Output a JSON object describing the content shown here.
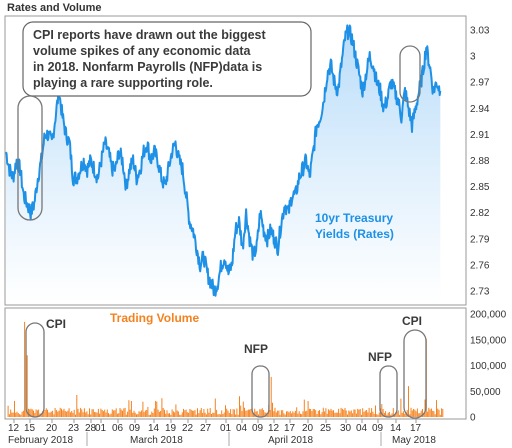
{
  "chart_data": [
    {
      "type": "area",
      "title": "Rates and Volume",
      "callout": [
        "CPI reports have drawn out the biggest",
        "volume spikes of any economic data",
        "in 2018.  Nonfarm Payrolls (NFP)data is",
        "playing a rare supporting role."
      ],
      "series_label": [
        "10yr Treasury",
        "Yields (Rates)"
      ],
      "yticks": [
        "3.03",
        "3",
        "2.97",
        "2.94",
        "2.91",
        "2.88",
        "2.85",
        "2.82",
        "2.79",
        "2.76",
        "2.73"
      ],
      "ylim": [
        2.715,
        3.045
      ],
      "xlim": [
        0,
        65
      ],
      "series": [
        {
          "name": "10yr Treasury Yields (Rates)",
          "color": "#1e90e6",
          "points": [
            [
              0,
              2.89
            ],
            [
              0.5,
              2.87
            ],
            [
              1,
              2.86
            ],
            [
              1.5,
              2.88
            ],
            [
              2,
              2.87
            ],
            [
              2.5,
              2.84
            ],
            [
              3,
              2.83
            ],
            [
              3.5,
              2.82
            ],
            [
              4,
              2.83
            ],
            [
              4.5,
              2.86
            ],
            [
              5,
              2.88
            ],
            [
              5.5,
              2.91
            ],
            [
              6,
              2.91
            ],
            [
              6.5,
              2.9
            ],
            [
              7,
              2.93
            ],
            [
              7.5,
              2.96
            ],
            [
              8,
              2.93
            ],
            [
              8.5,
              2.91
            ],
            [
              9,
              2.9
            ],
            [
              9.5,
              2.86
            ],
            [
              10,
              2.86
            ],
            [
              10.5,
              2.87
            ],
            [
              11,
              2.88
            ],
            [
              11.5,
              2.87
            ],
            [
              12,
              2.88
            ],
            [
              12.5,
              2.87
            ],
            [
              13,
              2.86
            ],
            [
              13.5,
              2.88
            ],
            [
              14,
              2.9
            ],
            [
              14.5,
              2.89
            ],
            [
              15,
              2.87
            ],
            [
              15.5,
              2.87
            ],
            [
              16,
              2.89
            ],
            [
              16.5,
              2.88
            ],
            [
              17,
              2.85
            ],
            [
              17.5,
              2.87
            ],
            [
              18,
              2.88
            ],
            [
              18.5,
              2.86
            ],
            [
              19,
              2.87
            ],
            [
              19.5,
              2.89
            ],
            [
              20,
              2.9
            ],
            [
              20.5,
              2.88
            ],
            [
              21,
              2.89
            ],
            [
              21.5,
              2.88
            ],
            [
              22,
              2.86
            ],
            [
              22.5,
              2.85
            ],
            [
              23,
              2.87
            ],
            [
              23.5,
              2.89
            ],
            [
              24,
              2.9
            ],
            [
              24.5,
              2.88
            ],
            [
              25,
              2.87
            ],
            [
              25.5,
              2.84
            ],
            [
              26,
              2.81
            ],
            [
              26.5,
              2.8
            ],
            [
              27,
              2.78
            ],
            [
              27.5,
              2.76
            ],
            [
              28,
              2.77
            ],
            [
              28.5,
              2.75
            ],
            [
              29,
              2.74
            ],
            [
              29.5,
              2.73
            ],
            [
              30,
              2.74
            ],
            [
              30.5,
              2.76
            ],
            [
              31,
              2.77
            ],
            [
              31.5,
              2.75
            ],
            [
              32,
              2.76
            ],
            [
              32.5,
              2.8
            ],
            [
              33,
              2.81
            ],
            [
              33.5,
              2.78
            ],
            [
              34,
              2.82
            ],
            [
              34.5,
              2.79
            ],
            [
              35,
              2.77
            ],
            [
              35.5,
              2.78
            ],
            [
              36,
              2.82
            ],
            [
              36.5,
              2.8
            ],
            [
              37,
              2.79
            ],
            [
              37.5,
              2.8
            ],
            [
              38,
              2.79
            ],
            [
              38.5,
              2.78
            ],
            [
              39,
              2.81
            ],
            [
              39.5,
              2.83
            ],
            [
              40,
              2.82
            ],
            [
              40.5,
              2.84
            ],
            [
              41,
              2.84
            ],
            [
              41.5,
              2.86
            ],
            [
              42,
              2.87
            ],
            [
              42.5,
              2.88
            ],
            [
              43,
              2.86
            ],
            [
              43.5,
              2.89
            ],
            [
              44,
              2.92
            ],
            [
              44.5,
              2.93
            ],
            [
              45,
              2.95
            ],
            [
              45.5,
              2.98
            ],
            [
              46,
              2.99
            ],
            [
              46.5,
              2.97
            ],
            [
              47,
              2.96
            ],
            [
              47.5,
              2.99
            ],
            [
              48,
              3.02
            ],
            [
              48.5,
              3.03
            ],
            [
              49,
              3.02
            ],
            [
              49.5,
              3
            ],
            [
              50,
              2.98
            ],
            [
              50.5,
              2.96
            ],
            [
              51,
              2.98
            ],
            [
              51.5,
              3
            ],
            [
              52,
              2.99
            ],
            [
              52.5,
              2.97
            ],
            [
              53,
              2.96
            ],
            [
              53.5,
              2.94
            ],
            [
              54,
              2.95
            ],
            [
              54.5,
              2.97
            ],
            [
              55,
              2.96
            ],
            [
              55.5,
              2.95
            ],
            [
              56,
              2.93
            ],
            [
              56.5,
              2.96
            ],
            [
              57,
              2.94
            ],
            [
              57.5,
              2.92
            ],
            [
              58,
              2.94
            ],
            [
              58.5,
              2.96
            ],
            [
              59,
              2.98
            ],
            [
              59.5,
              3.01
            ],
            [
              60,
              2.99
            ],
            [
              60.5,
              2.96
            ],
            [
              61,
              2.97
            ],
            [
              61.5,
              2.96
            ]
          ]
        }
      ]
    },
    {
      "type": "bar",
      "series_label": "Trading Volume",
      "yticks": [
        "200,000",
        "150,000",
        "100,000",
        "50,000",
        "0"
      ],
      "ylim": [
        0,
        210000
      ],
      "xlim": [
        0,
        65
      ],
      "x_tick_labels": [
        "12",
        "15",
        "20",
        "23",
        "28",
        "01",
        "06",
        "09",
        "14",
        "19",
        "22",
        "27",
        "01",
        "04",
        "09",
        "12",
        "17",
        "20",
        "25",
        "30",
        "04",
        "09",
        "14",
        "17"
      ],
      "month_labels": [
        "February 2018",
        "March 2018",
        "April 2018",
        "May 2018"
      ],
      "annotations": [
        "CPI",
        "NFP",
        "NFP",
        "CPI"
      ],
      "series": [
        {
          "name": "Trading Volume",
          "color": "#f58220",
          "peaks": [
            [
              2.6,
              185000
            ],
            [
              3.0,
              120000
            ],
            [
              37.5,
              78000
            ],
            [
              57.0,
              60000
            ],
            [
              59.5,
              152000
            ]
          ]
        }
      ]
    }
  ]
}
